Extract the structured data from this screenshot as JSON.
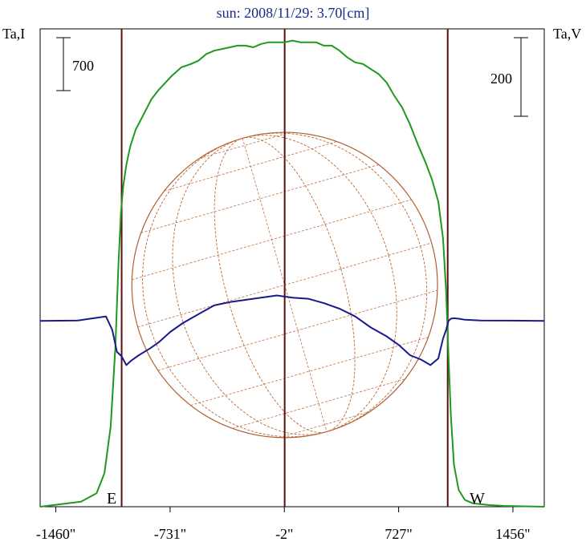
{
  "chart_data": {
    "type": "line",
    "title": "sun: 2008/11/29: 3.70[cm]",
    "ylabel_left": "Ta,I",
    "ylabel_right": "Ta,V",
    "scale_left_label": "700",
    "scale_right_label": "200",
    "x_tick_labels": [
      "-1460\"",
      "-731\"",
      "-2\"",
      "727\"",
      "1456\""
    ],
    "x_ticks": [
      -1460,
      -731,
      -2,
      727,
      1456
    ],
    "xlim": [
      -1560,
      1656
    ],
    "limb_labels": {
      "east": "E",
      "west": "W"
    },
    "limb_lines_x": [
      -1040,
      0,
      1040
    ],
    "disk": {
      "center_x": 0,
      "radius": 975,
      "meridians": 8,
      "parallels": 9
    },
    "colors": {
      "title": "#1a2a8a",
      "intensity": "#1e9a1e",
      "polarization": "#1a1a8c",
      "limb_lines": "#5a1010",
      "disk": "#b06030",
      "grid": "#c07040"
    },
    "series": [
      {
        "key": "intensity",
        "ylim": [
          0,
          2850
        ],
        "x": [
          -1560,
          -1300,
          -1200,
          -1150,
          -1110,
          -1080,
          -1060,
          -1045,
          -1030,
          -1010,
          -985,
          -950,
          -900,
          -850,
          -800,
          -720,
          -660,
          -600,
          -550,
          -500,
          -450,
          -400,
          -350,
          -300,
          -250,
          -200,
          -150,
          -100,
          -50,
          0,
          50,
          100,
          150,
          200,
          250,
          300,
          350,
          400,
          450,
          500,
          550,
          600,
          650,
          700,
          750,
          800,
          850,
          900,
          940,
          980,
          1010,
          1030,
          1045,
          1060,
          1080,
          1110,
          1150,
          1200,
          1300,
          1400,
          1656
        ],
        "y": [
          0,
          30,
          80,
          200,
          480,
          950,
          1450,
          1750,
          1910,
          2040,
          2150,
          2250,
          2340,
          2430,
          2490,
          2570,
          2620,
          2640,
          2660,
          2700,
          2720,
          2730,
          2740,
          2750,
          2750,
          2740,
          2760,
          2770,
          2770,
          2770,
          2780,
          2770,
          2770,
          2770,
          2750,
          2750,
          2720,
          2680,
          2650,
          2640,
          2610,
          2580,
          2530,
          2450,
          2380,
          2280,
          2160,
          2050,
          1950,
          1820,
          1600,
          1280,
          900,
          550,
          250,
          100,
          40,
          20,
          10,
          5,
          0
        ]
      },
      {
        "key": "polarization",
        "ylim": [
          -840,
          1320
        ],
        "x": [
          -1560,
          -1320,
          -1140,
          -1100,
          -1070,
          -1040,
          -1010,
          -980,
          -930,
          -860,
          -800,
          -730,
          -650,
          -550,
          -450,
          -350,
          -250,
          -150,
          -50,
          0,
          50,
          150,
          250,
          350,
          450,
          550,
          650,
          730,
          800,
          870,
          930,
          980,
          1010,
          1030,
          1045,
          1060,
          1080,
          1110,
          1150,
          1250,
          1656
        ],
        "y": [
          0,
          2,
          20,
          -40,
          -140,
          -160,
          -200,
          -180,
          -155,
          -125,
          -95,
          -50,
          -10,
          30,
          70,
          85,
          95,
          105,
          115,
          110,
          105,
          100,
          80,
          55,
          20,
          -30,
          -70,
          -110,
          -155,
          -175,
          -200,
          -170,
          -80,
          -40,
          0,
          10,
          12,
          10,
          5,
          2,
          0
        ]
      }
    ]
  }
}
